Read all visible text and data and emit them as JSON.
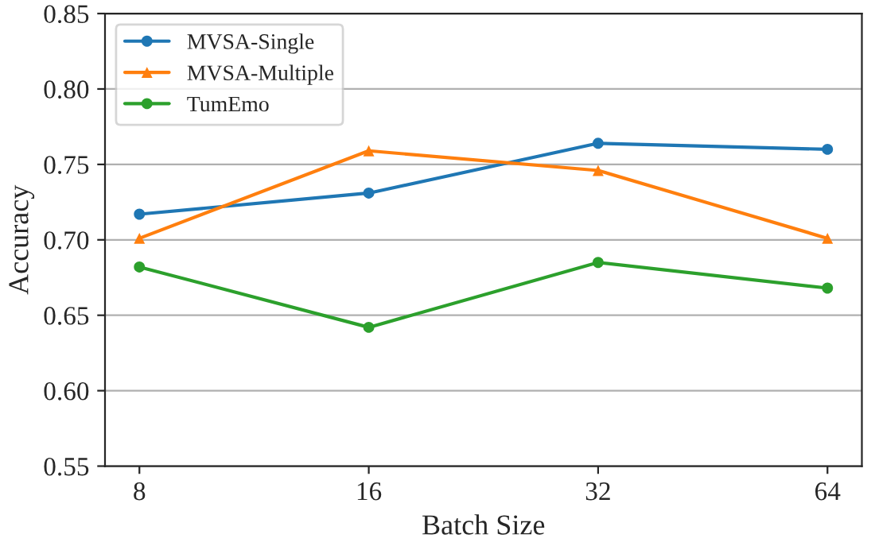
{
  "chart_data": {
    "type": "line",
    "xlabel": "Batch Size",
    "ylabel": "Accuracy",
    "categories": [
      "8",
      "16",
      "32",
      "64"
    ],
    "series": [
      {
        "name": "MVSA-Single",
        "color": "#1f77b4",
        "marker": "circle",
        "values": [
          0.717,
          0.731,
          0.764,
          0.76
        ]
      },
      {
        "name": "MVSA-Multiple",
        "color": "#ff7f0e",
        "marker": "triangle",
        "values": [
          0.701,
          0.759,
          0.746,
          0.701
        ]
      },
      {
        "name": "TumEmo",
        "color": "#2ca02c",
        "marker": "circle",
        "values": [
          0.682,
          0.642,
          0.685,
          0.668
        ]
      }
    ],
    "ylim": [
      0.55,
      0.85
    ],
    "yticks": [
      {
        "value": 0.55,
        "label": "0.55"
      },
      {
        "value": 0.6,
        "label": "0.60"
      },
      {
        "value": 0.65,
        "label": "0.65"
      },
      {
        "value": 0.7,
        "label": "0.70"
      },
      {
        "value": 0.75,
        "label": "0.75"
      },
      {
        "value": 0.8,
        "label": "0.80"
      },
      {
        "value": 0.85,
        "label": "0.85"
      }
    ],
    "grid": "y",
    "legend": "top left",
    "line_style": "solid"
  }
}
